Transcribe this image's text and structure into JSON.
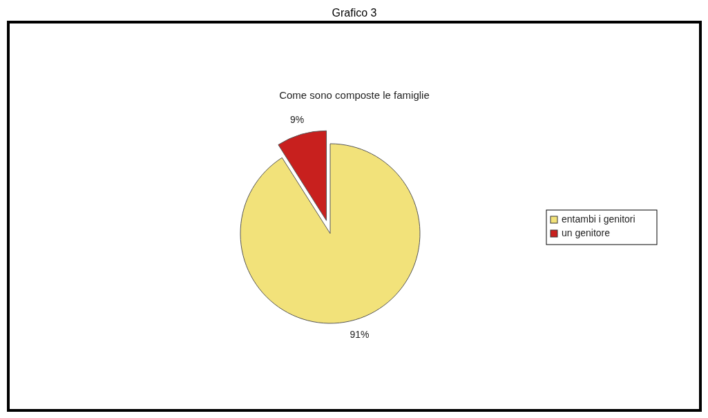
{
  "chart_data": {
    "type": "pie",
    "title": "Come sono composte le famiglie",
    "annotations": [
      "Grafico 3"
    ],
    "categories": [
      "entambi i genitori",
      "un genitore"
    ],
    "values": [
      91,
      9
    ],
    "colors": [
      "#f2e27a",
      "#c8201e"
    ],
    "value_labels": [
      "91%",
      "9%"
    ],
    "legend": "right"
  }
}
